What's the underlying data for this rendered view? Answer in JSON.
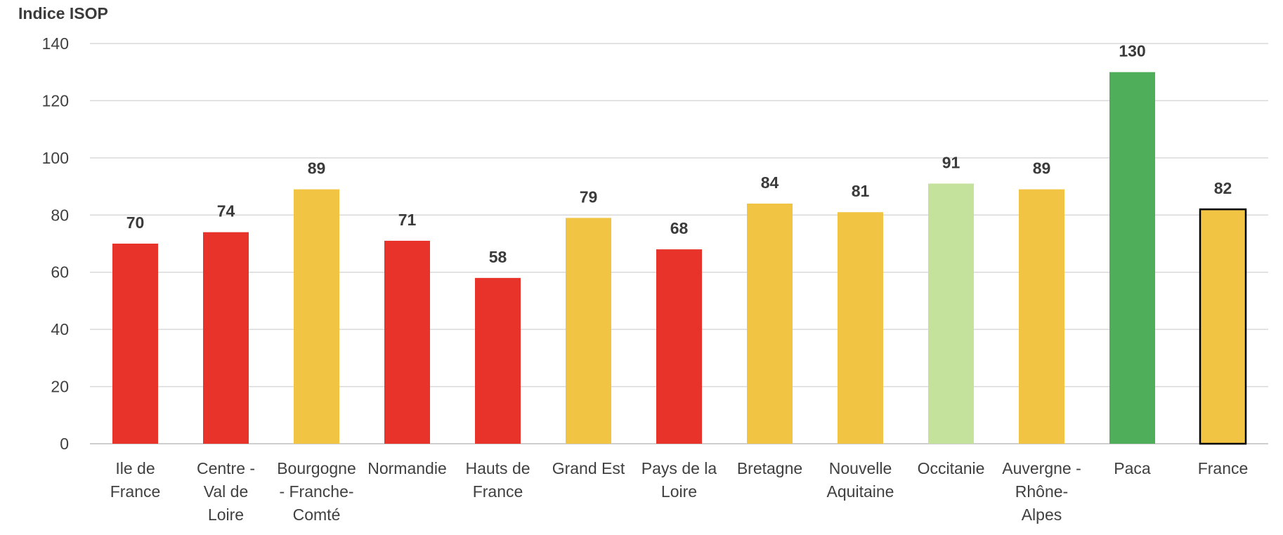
{
  "chart_data": {
    "type": "bar",
    "ylabel": "Indice ISOP",
    "ylim": [
      0,
      140
    ],
    "yticks": [
      "0",
      "20",
      "40",
      "60",
      "80",
      "100",
      "120",
      "140"
    ],
    "grid": true,
    "legend": "none",
    "categories": [
      [
        "Ile de",
        "France"
      ],
      [
        "Centre -",
        "Val de",
        "Loire"
      ],
      [
        "Bourgogne",
        "- Franche-",
        "Comté"
      ],
      [
        "Normandie"
      ],
      [
        "Hauts de",
        "France"
      ],
      [
        "Grand Est"
      ],
      [
        "Pays de la",
        "Loire"
      ],
      [
        "Bretagne"
      ],
      [
        "Nouvelle",
        "Aquitaine"
      ],
      [
        "Occitanie"
      ],
      [
        "Auvergne -",
        "Rhône-",
        "Alpes"
      ],
      [
        "Paca"
      ],
      [
        "France"
      ]
    ],
    "values": [
      70,
      74,
      89,
      71,
      58,
      79,
      68,
      84,
      81,
      91,
      89,
      130,
      82
    ],
    "labels": [
      "70",
      "74",
      "89",
      "71",
      "58",
      "79",
      "68",
      "84",
      "81",
      "91",
      "89",
      "130",
      "82"
    ],
    "bar_colors": [
      "#e8332a",
      "#e8332a",
      "#f2c443",
      "#e8332a",
      "#e8332a",
      "#f2c443",
      "#e8332a",
      "#f2c443",
      "#f2c443",
      "#c5e29c",
      "#f2c443",
      "#4fae5a",
      "#f2c443"
    ],
    "outlined_bars": [
      false,
      false,
      false,
      false,
      false,
      false,
      false,
      false,
      false,
      false,
      false,
      false,
      true
    ],
    "outline_color": "#000000"
  }
}
